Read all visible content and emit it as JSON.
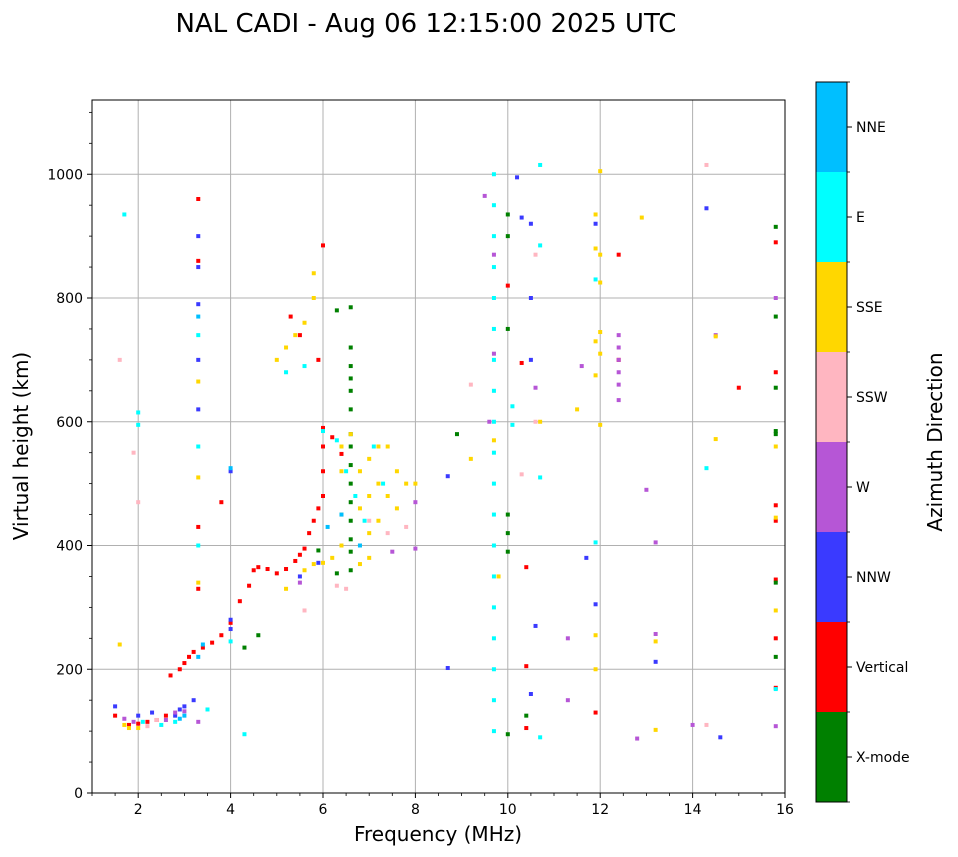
{
  "chart_data": {
    "type": "scatter",
    "title": "NAL CADI - Aug 06 12:15:00 2025 UTC",
    "xlabel": "Frequency (MHz)",
    "ylabel": "Virtual height (km)",
    "xlim": [
      1,
      16
    ],
    "ylim": [
      0,
      1120
    ],
    "xticks": [
      2,
      4,
      6,
      8,
      10,
      12,
      14,
      16
    ],
    "yticks": [
      0,
      200,
      400,
      600,
      800,
      1000
    ],
    "grid": true,
    "colorbar": {
      "label": "Azimuth Direction",
      "position": "right",
      "categories": [
        {
          "name": "X-mode",
          "color": "#008000"
        },
        {
          "name": "Vertical",
          "color": "#ff0000"
        },
        {
          "name": "NNW",
          "color": "#3a3aff"
        },
        {
          "name": "W",
          "color": "#b656d6"
        },
        {
          "name": "SSW",
          "color": "#ffb6c1"
        },
        {
          "name": "SSE",
          "color": "#ffd700"
        },
        {
          "name": "E",
          "color": "#00ffff"
        },
        {
          "name": "NNE",
          "color": "#00bfff"
        }
      ]
    },
    "series": [
      {
        "name": "Vertical",
        "points": [
          [
            1.5,
            125
          ],
          [
            1.8,
            110
          ],
          [
            2.0,
            112
          ],
          [
            2.2,
            115
          ],
          [
            2.4,
            118
          ],
          [
            2.6,
            125
          ],
          [
            2.7,
            190
          ],
          [
            2.9,
            200
          ],
          [
            3.0,
            210
          ],
          [
            3.1,
            220
          ],
          [
            3.2,
            228
          ],
          [
            3.4,
            235
          ],
          [
            3.6,
            243
          ],
          [
            3.8,
            255
          ],
          [
            4.0,
            275
          ],
          [
            4.2,
            310
          ],
          [
            4.4,
            335
          ],
          [
            4.5,
            360
          ],
          [
            4.6,
            365
          ],
          [
            4.8,
            362
          ],
          [
            5.0,
            355
          ],
          [
            5.2,
            362
          ],
          [
            5.4,
            375
          ],
          [
            5.5,
            385
          ],
          [
            5.6,
            395
          ],
          [
            5.7,
            420
          ],
          [
            5.8,
            440
          ],
          [
            5.9,
            460
          ],
          [
            6.0,
            480
          ],
          [
            6.0,
            520
          ],
          [
            6.0,
            560
          ],
          [
            6.0,
            590
          ],
          [
            6.2,
            575
          ],
          [
            6.4,
            548
          ],
          [
            3.3,
            330
          ],
          [
            3.3,
            430
          ],
          [
            3.3,
            860
          ],
          [
            3.3,
            960
          ],
          [
            3.8,
            470
          ],
          [
            5.3,
            770
          ],
          [
            5.5,
            740
          ],
          [
            5.9,
            700
          ],
          [
            6.0,
            885
          ],
          [
            10.0,
            820
          ],
          [
            10.3,
            695
          ],
          [
            10.4,
            365
          ],
          [
            11.9,
            130
          ],
          [
            12.4,
            870
          ],
          [
            12.4,
            700
          ],
          [
            15.0,
            655
          ],
          [
            15.8,
            890
          ],
          [
            15.8,
            680
          ],
          [
            15.8,
            465
          ],
          [
            15.8,
            440
          ],
          [
            15.8,
            345
          ],
          [
            15.8,
            250
          ],
          [
            15.8,
            170
          ],
          [
            10.4,
            205
          ],
          [
            10.4,
            105
          ]
        ]
      },
      {
        "name": "X-mode",
        "points": [
          [
            4.3,
            235
          ],
          [
            4.6,
            255
          ],
          [
            5.9,
            392
          ],
          [
            6.3,
            780
          ],
          [
            6.6,
            785
          ],
          [
            6.6,
            720
          ],
          [
            6.6,
            690
          ],
          [
            6.6,
            670
          ],
          [
            6.6,
            650
          ],
          [
            6.6,
            620
          ],
          [
            6.6,
            580
          ],
          [
            6.6,
            560
          ],
          [
            6.6,
            530
          ],
          [
            6.6,
            500
          ],
          [
            6.6,
            470
          ],
          [
            6.6,
            440
          ],
          [
            6.6,
            410
          ],
          [
            6.6,
            390
          ],
          [
            6.6,
            360
          ],
          [
            6.3,
            355
          ],
          [
            10.0,
            935
          ],
          [
            10.0,
            900
          ],
          [
            10.0,
            750
          ],
          [
            10.0,
            450
          ],
          [
            10.0,
            420
          ],
          [
            10.0,
            390
          ],
          [
            10.0,
            95
          ],
          [
            10.4,
            125
          ],
          [
            8.9,
            580
          ],
          [
            15.8,
            915
          ],
          [
            15.8,
            770
          ],
          [
            15.8,
            655
          ],
          [
            15.8,
            585
          ],
          [
            15.8,
            580
          ],
          [
            15.8,
            340
          ],
          [
            15.8,
            220
          ]
        ]
      },
      {
        "name": "NNW",
        "points": [
          [
            2.8,
            125
          ],
          [
            2.9,
            135
          ],
          [
            3.0,
            140
          ],
          [
            3.2,
            150
          ],
          [
            3.3,
            620
          ],
          [
            3.3,
            790
          ],
          [
            3.3,
            900
          ],
          [
            3.3,
            850
          ],
          [
            3.3,
            700
          ],
          [
            4.0,
            520
          ],
          [
            4.0,
            280
          ],
          [
            4.0,
            265
          ],
          [
            5.5,
            350
          ],
          [
            5.9,
            372
          ],
          [
            8.7,
            512
          ],
          [
            8.7,
            202
          ],
          [
            10.3,
            930
          ],
          [
            10.5,
            920
          ],
          [
            10.5,
            800
          ],
          [
            10.5,
            700
          ],
          [
            10.5,
            160
          ],
          [
            10.6,
            270
          ],
          [
            11.7,
            380
          ],
          [
            11.9,
            305
          ],
          [
            11.9,
            920
          ],
          [
            13.2,
            212
          ],
          [
            14.3,
            945
          ],
          [
            14.6,
            90
          ],
          [
            1.5,
            140
          ],
          [
            2.3,
            130
          ],
          [
            2.0,
            125
          ],
          [
            10.2,
            995
          ]
        ]
      },
      {
        "name": "W",
        "points": [
          [
            1.7,
            120
          ],
          [
            1.9,
            115
          ],
          [
            2.6,
            118
          ],
          [
            2.8,
            130
          ],
          [
            3.0,
            132
          ],
          [
            3.3,
            115
          ],
          [
            5.5,
            340
          ],
          [
            7.5,
            390
          ],
          [
            8.0,
            395
          ],
          [
            8.0,
            470
          ],
          [
            9.5,
            965
          ],
          [
            9.7,
            870
          ],
          [
            9.7,
            710
          ],
          [
            9.6,
            600
          ],
          [
            10.6,
            655
          ],
          [
            11.3,
            250
          ],
          [
            11.3,
            150
          ],
          [
            11.6,
            690
          ],
          [
            12.4,
            740
          ],
          [
            12.4,
            720
          ],
          [
            12.4,
            700
          ],
          [
            12.4,
            680
          ],
          [
            12.4,
            660
          ],
          [
            12.4,
            635
          ],
          [
            12.8,
            88
          ],
          [
            13.0,
            490
          ],
          [
            13.2,
            405
          ],
          [
            13.2,
            257
          ],
          [
            14.0,
            110
          ],
          [
            14.5,
            740
          ],
          [
            15.8,
            800
          ],
          [
            15.8,
            108
          ]
        ]
      },
      {
        "name": "SSW",
        "points": [
          [
            1.6,
            700
          ],
          [
            1.9,
            550
          ],
          [
            2.0,
            470
          ],
          [
            2.2,
            108
          ],
          [
            2.4,
            118
          ],
          [
            5.6,
            295
          ],
          [
            6.3,
            335
          ],
          [
            6.5,
            330
          ],
          [
            7.0,
            440
          ],
          [
            7.4,
            420
          ],
          [
            7.8,
            430
          ],
          [
            9.2,
            660
          ],
          [
            10.3,
            515
          ],
          [
            10.6,
            870
          ],
          [
            10.6,
            600
          ],
          [
            14.3,
            1015
          ],
          [
            14.3,
            110
          ]
        ]
      },
      {
        "name": "SSE",
        "points": [
          [
            1.6,
            240
          ],
          [
            1.7,
            110
          ],
          [
            1.8,
            105
          ],
          [
            2.0,
            105
          ],
          [
            3.3,
            340
          ],
          [
            3.3,
            510
          ],
          [
            3.3,
            665
          ],
          [
            5.0,
            700
          ],
          [
            5.2,
            720
          ],
          [
            5.4,
            740
          ],
          [
            5.6,
            760
          ],
          [
            5.8,
            800
          ],
          [
            5.8,
            840
          ],
          [
            5.2,
            330
          ],
          [
            5.6,
            360
          ],
          [
            5.8,
            370
          ],
          [
            6.0,
            372
          ],
          [
            6.2,
            380
          ],
          [
            6.4,
            400
          ],
          [
            6.4,
            450
          ],
          [
            6.4,
            520
          ],
          [
            6.4,
            560
          ],
          [
            6.6,
            580
          ],
          [
            6.8,
            520
          ],
          [
            6.8,
            460
          ],
          [
            6.8,
            400
          ],
          [
            6.8,
            370
          ],
          [
            7.0,
            540
          ],
          [
            7.0,
            480
          ],
          [
            7.0,
            420
          ],
          [
            7.0,
            380
          ],
          [
            7.2,
            560
          ],
          [
            7.2,
            500
          ],
          [
            7.2,
            440
          ],
          [
            7.4,
            560
          ],
          [
            7.4,
            480
          ],
          [
            7.6,
            520
          ],
          [
            7.6,
            460
          ],
          [
            7.8,
            500
          ],
          [
            8.0,
            500
          ],
          [
            9.2,
            540
          ],
          [
            9.7,
            570
          ],
          [
            9.8,
            350
          ],
          [
            10.7,
            600
          ],
          [
            11.5,
            620
          ],
          [
            11.9,
            935
          ],
          [
            11.9,
            880
          ],
          [
            11.9,
            730
          ],
          [
            11.9,
            675
          ],
          [
            11.9,
            255
          ],
          [
            11.9,
            200
          ],
          [
            12.0,
            1005
          ],
          [
            12.0,
            870
          ],
          [
            12.0,
            825
          ],
          [
            12.0,
            745
          ],
          [
            12.0,
            710
          ],
          [
            12.0,
            595
          ],
          [
            12.9,
            930
          ],
          [
            13.2,
            102
          ],
          [
            13.2,
            245
          ],
          [
            14.5,
            572
          ],
          [
            14.5,
            738
          ],
          [
            15.8,
            560
          ],
          [
            15.8,
            445
          ],
          [
            15.8,
            295
          ]
        ]
      },
      {
        "name": "E",
        "points": [
          [
            1.7,
            935
          ],
          [
            2.0,
            615
          ],
          [
            2.0,
            595
          ],
          [
            2.1,
            115
          ],
          [
            2.5,
            110
          ],
          [
            2.8,
            115
          ],
          [
            3.3,
            740
          ],
          [
            3.3,
            560
          ],
          [
            3.3,
            400
          ],
          [
            3.5,
            135
          ],
          [
            4.0,
            245
          ],
          [
            4.3,
            95
          ],
          [
            5.2,
            680
          ],
          [
            5.6,
            690
          ],
          [
            6.0,
            585
          ],
          [
            6.3,
            570
          ],
          [
            6.5,
            520
          ],
          [
            6.7,
            480
          ],
          [
            6.9,
            440
          ],
          [
            7.1,
            560
          ],
          [
            7.3,
            500
          ],
          [
            9.7,
            1000
          ],
          [
            9.7,
            950
          ],
          [
            9.7,
            900
          ],
          [
            9.7,
            850
          ],
          [
            9.7,
            800
          ],
          [
            9.7,
            750
          ],
          [
            9.7,
            700
          ],
          [
            9.7,
            650
          ],
          [
            9.7,
            600
          ],
          [
            9.7,
            550
          ],
          [
            9.7,
            500
          ],
          [
            9.7,
            450
          ],
          [
            9.7,
            400
          ],
          [
            9.7,
            350
          ],
          [
            9.7,
            300
          ],
          [
            9.7,
            250
          ],
          [
            9.7,
            200
          ],
          [
            9.7,
            150
          ],
          [
            9.7,
            100
          ],
          [
            10.1,
            625
          ],
          [
            10.1,
            595
          ],
          [
            10.7,
            1015
          ],
          [
            10.7,
            885
          ],
          [
            10.7,
            510
          ],
          [
            10.7,
            90
          ],
          [
            11.9,
            830
          ],
          [
            11.9,
            405
          ],
          [
            14.3,
            525
          ],
          [
            15.8,
            168
          ]
        ]
      },
      {
        "name": "NNE",
        "points": [
          [
            3.3,
            770
          ],
          [
            3.3,
            220
          ],
          [
            3.4,
            240
          ],
          [
            2.9,
            120
          ],
          [
            3.0,
            125
          ],
          [
            4.0,
            525
          ],
          [
            6.1,
            430
          ],
          [
            6.4,
            450
          ],
          [
            6.8,
            400
          ]
        ]
      }
    ]
  }
}
